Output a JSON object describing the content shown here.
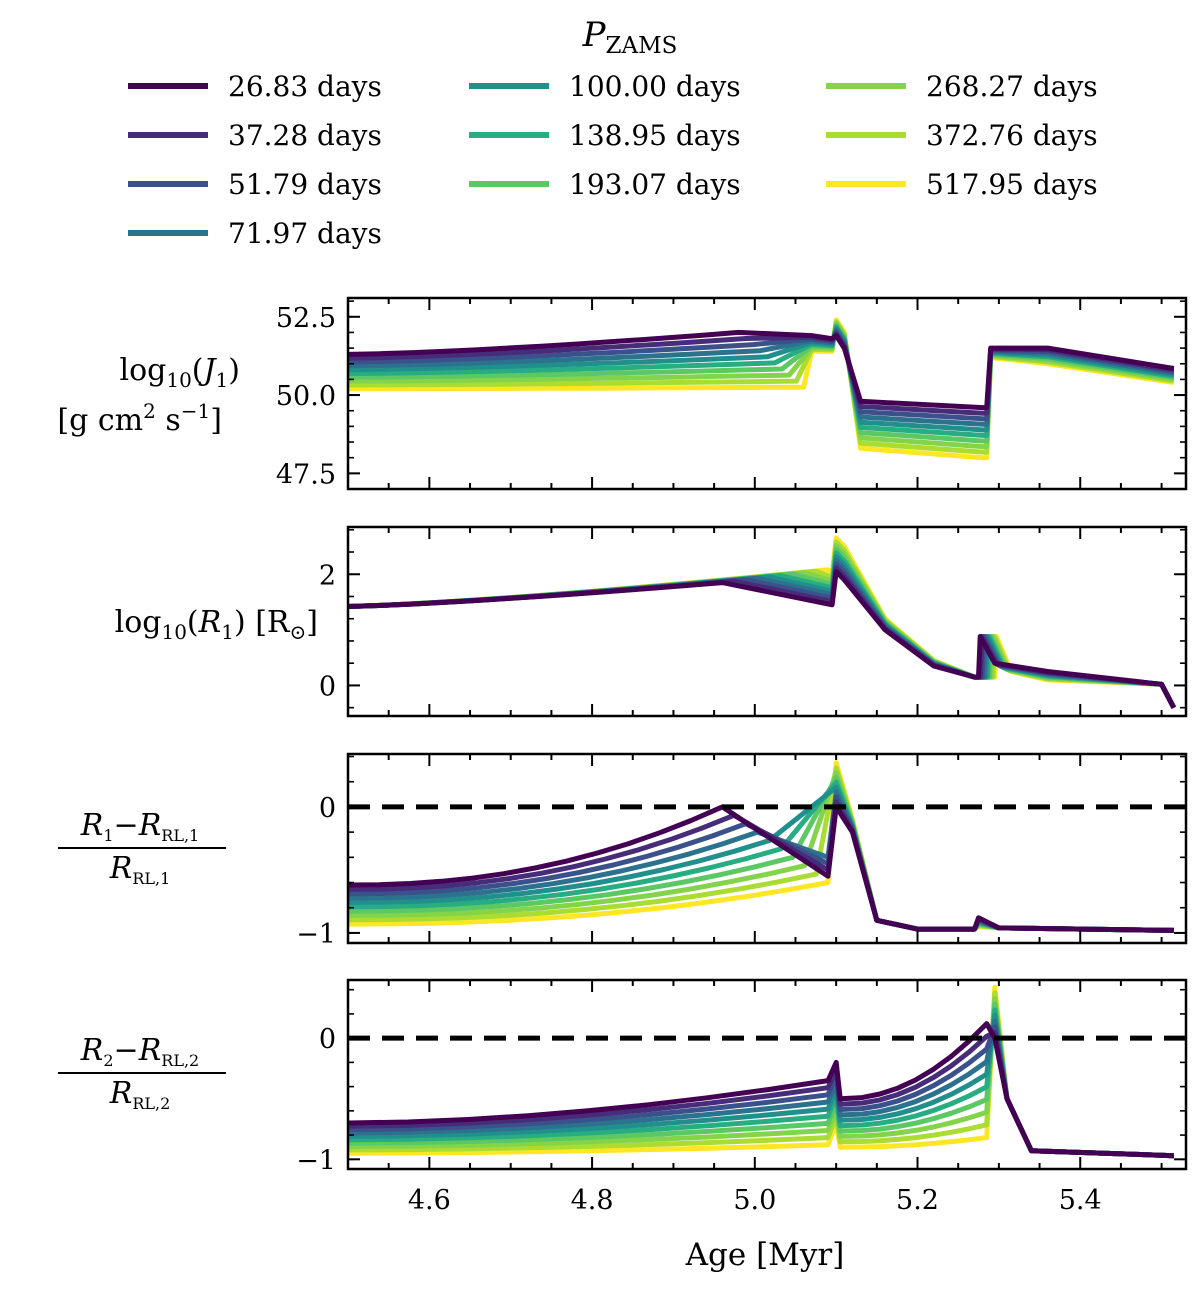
{
  "chart_data": {
    "type": "line",
    "legend": {
      "title_symbol": "P",
      "title_subscript": "ZAMS",
      "placement": "top-center",
      "entries": [
        "26.83 days",
        "37.28 days",
        "51.79 days",
        "71.97 days",
        "100.00 days",
        "138.95 days",
        "193.07 days",
        "268.27 days",
        "372.76 days",
        "517.95 days"
      ],
      "colors": [
        "#440154",
        "#472c7a",
        "#3b518b",
        "#2c718e",
        "#21908d",
        "#27ad81",
        "#5cc863",
        "#84d44b",
        "#aadc32",
        "#fde725"
      ]
    },
    "xlabel": "Age [Myr]",
    "xlim": [
      4.5,
      5.53
    ],
    "xticks": [
      "4.6",
      "4.8",
      "5.0",
      "5.2",
      "5.4"
    ],
    "panels": [
      {
        "name": "log10(J1)",
        "ylabel_main": "log",
        "ylabel_base": "10",
        "ylabel_var": "J",
        "ylabel_var_sub": "1",
        "ylabel_units": "[g cm",
        "ylabel_units_sup1": "2",
        "ylabel_units_mid": " s",
        "ylabel_units_sup2": "−1",
        "ylabel_units_end": "]",
        "ylim": [
          47.0,
          53.1
        ],
        "yticks": [
          "47.5",
          "50.0",
          "52.5"
        ],
        "reference_line": null
      },
      {
        "name": "log10(R1)",
        "ylabel_main": "log",
        "ylabel_base": "10",
        "ylabel_var": "R",
        "ylabel_var_sub": "1",
        "ylabel_units_prefix": "[R",
        "ylabel_units_sub": "⊙",
        "ylabel_units_end": "]",
        "ylim": [
          -0.55,
          2.85
        ],
        "yticks": [
          "0",
          "2"
        ],
        "reference_line": null
      },
      {
        "name": "(R1-RRL,1)/RRL,1",
        "num_var": "R",
        "num_var_sub": "1",
        "num_minus": "−",
        "num_rl": "R",
        "num_rl_sub": "RL,1",
        "den_rl": "R",
        "den_rl_sub": "RL,1",
        "ylim": [
          -1.08,
          0.42
        ],
        "yticks": [
          "−1",
          "0"
        ],
        "reference_line": 0
      },
      {
        "name": "(R2-RRL,2)/RRL,2",
        "num_var": "R",
        "num_var_sub": "2",
        "num_minus": "−",
        "num_rl": "R",
        "num_rl_sub": "RL,2",
        "den_rl": "R",
        "den_rl_sub": "RL,2",
        "ylim": [
          -1.08,
          0.48
        ],
        "yticks": [
          "−1",
          "0"
        ],
        "reference_line": 0
      }
    ]
  }
}
